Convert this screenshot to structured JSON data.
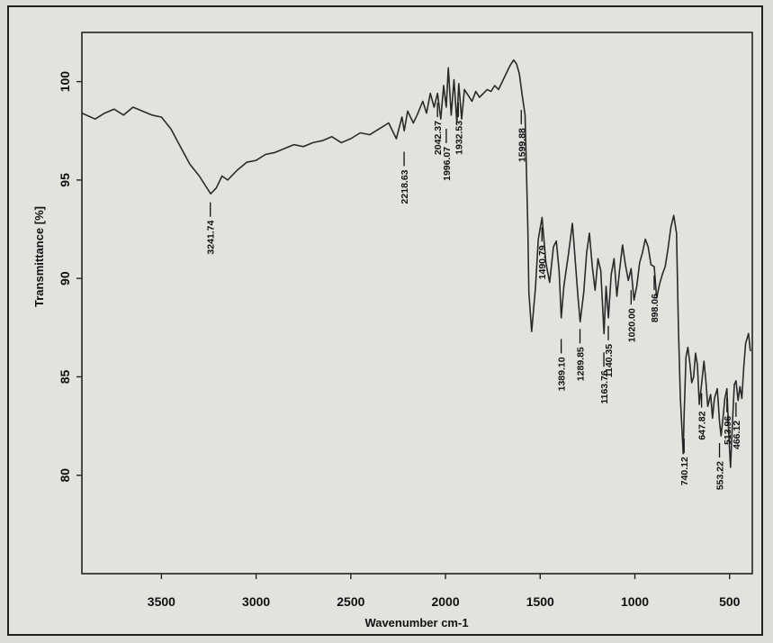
{
  "chart_data": {
    "type": "line",
    "title": "",
    "xlabel": "Wavenumber cm-1",
    "ylabel": "Transmittance [%]",
    "x_reversed": true,
    "xlim": [
      3920,
      380
    ],
    "ylim": [
      75,
      102.5
    ],
    "x_ticks": [
      3500,
      3000,
      2500,
      2000,
      1500,
      1000,
      500
    ],
    "y_ticks": [
      80,
      85,
      90,
      95,
      100
    ],
    "grid": false,
    "series": [
      {
        "x": [
          3920,
          3850,
          3800,
          3750,
          3700,
          3650,
          3600,
          3550,
          3500,
          3450,
          3400,
          3350,
          3300,
          3260,
          3240,
          3210,
          3180,
          3150,
          3100,
          3050,
          3000,
          2950,
          2900,
          2850,
          2800,
          2750,
          2700,
          2650,
          2600,
          2550,
          2500,
          2450,
          2400,
          2350,
          2300,
          2260,
          2230,
          2218,
          2200,
          2170,
          2150,
          2120,
          2100,
          2080,
          2060,
          2042,
          2025,
          2010,
          1996,
          1985,
          1970,
          1955,
          1940,
          1930,
          1915,
          1900,
          1880,
          1860,
          1840,
          1820,
          1800,
          1780,
          1760,
          1740,
          1720,
          1700,
          1680,
          1660,
          1640,
          1625,
          1610,
          1595,
          1580,
          1565,
          1560,
          1545,
          1525,
          1510,
          1490,
          1470,
          1450,
          1430,
          1415,
          1400,
          1389,
          1375,
          1350,
          1330,
          1300,
          1289,
          1270,
          1255,
          1240,
          1225,
          1210,
          1195,
          1180,
          1163,
          1152,
          1140,
          1125,
          1110,
          1095,
          1080,
          1065,
          1050,
          1035,
          1020,
          1005,
          990,
          975,
          960,
          945,
          930,
          915,
          898,
          885,
          870,
          855,
          840,
          825,
          810,
          795,
          780,
          770,
          760,
          745,
          740,
          730,
          720,
          710,
          700,
          690,
          680,
          670,
          660,
          647,
          635,
          625,
          615,
          600,
          590,
          580,
          565,
          553,
          545,
          535,
          525,
          514,
          505,
          495,
          485,
          475,
          466,
          455,
          445,
          435,
          425,
          415,
          400,
          390
        ],
        "y": [
          98.4,
          98.1,
          98.4,
          98.6,
          98.3,
          98.7,
          98.5,
          98.3,
          98.2,
          97.6,
          96.7,
          95.8,
          95.2,
          94.6,
          94.3,
          94.6,
          95.2,
          95.0,
          95.5,
          95.9,
          96.0,
          96.3,
          96.4,
          96.6,
          96.8,
          96.7,
          96.9,
          97.0,
          97.2,
          96.9,
          97.1,
          97.4,
          97.3,
          97.6,
          97.9,
          97.1,
          98.2,
          97.5,
          98.5,
          97.9,
          98.3,
          99.0,
          98.4,
          99.4,
          98.7,
          99.4,
          98.1,
          99.8,
          98.7,
          100.7,
          98.3,
          100.1,
          97.9,
          99.9,
          98.1,
          99.6,
          99.3,
          99.0,
          99.5,
          99.2,
          99.4,
          99.6,
          99.5,
          99.8,
          99.6,
          100.0,
          100.4,
          100.8,
          101.1,
          100.9,
          100.4,
          99.3,
          98.3,
          92.5,
          89.3,
          87.3,
          89.5,
          92.0,
          93.1,
          90.8,
          89.8,
          91.6,
          91.9,
          90.4,
          88.0,
          89.6,
          91.3,
          92.8,
          89.0,
          87.8,
          89.3,
          91.3,
          92.3,
          90.6,
          89.4,
          91.0,
          90.4,
          87.2,
          89.6,
          88.0,
          90.2,
          91.0,
          89.1,
          90.5,
          91.7,
          90.7,
          89.9,
          90.5,
          88.9,
          89.6,
          90.8,
          91.3,
          92.0,
          91.6,
          90.7,
          90.6,
          89.0,
          89.7,
          90.2,
          90.6,
          91.5,
          92.6,
          93.2,
          92.3,
          87.5,
          84.0,
          81.1,
          83.0,
          86.0,
          86.5,
          85.7,
          84.7,
          85.0,
          86.2,
          85.6,
          83.6,
          84.7,
          85.8,
          84.8,
          83.5,
          84.1,
          82.9,
          83.9,
          84.4,
          82.7,
          82.0,
          82.9,
          83.9,
          84.4,
          82.2,
          80.4,
          82.6,
          84.6,
          84.8,
          83.8,
          84.5,
          83.9,
          85.5,
          86.7,
          87.2,
          86.3
        ]
      }
    ],
    "peaks": [
      {
        "label": "3241.74",
        "x": 3241.74
      },
      {
        "label": "2218.63",
        "x": 2218.63
      },
      {
        "label": "2042.37",
        "x": 2042.37
      },
      {
        "label": "1996.07",
        "x": 1996.07
      },
      {
        "label": "1932.53",
        "x": 1932.53
      },
      {
        "label": "1599.88",
        "x": 1599.88
      },
      {
        "label": "1490.79",
        "x": 1490.79
      },
      {
        "label": "1389.10",
        "x": 1389.1
      },
      {
        "label": "1289.85",
        "x": 1289.85
      },
      {
        "label": "1163.76",
        "x": 1163.76
      },
      {
        "label": "1140.35",
        "x": 1140.35
      },
      {
        "label": "1020.00",
        "x": 1020.0
      },
      {
        "label": "898.06",
        "x": 898.06
      },
      {
        "label": "740.12",
        "x": 740.12
      },
      {
        "label": "647.82",
        "x": 647.82
      },
      {
        "label": "553.22",
        "x": 553.22
      },
      {
        "label": "513.96",
        "x": 513.96
      },
      {
        "label": "466.12",
        "x": 466.12
      }
    ],
    "colors": {
      "line": "#2a2a2a",
      "background": "#e2e2df",
      "frame": "#222222"
    }
  }
}
